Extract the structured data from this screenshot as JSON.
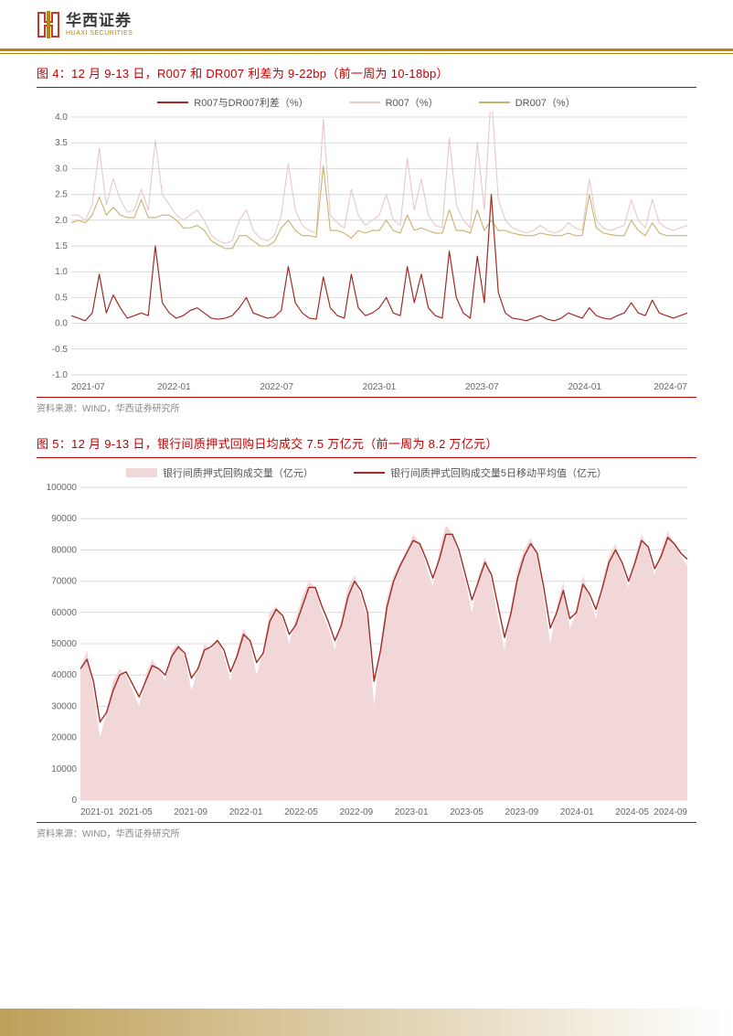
{
  "brand": {
    "zh": "华西证券",
    "en": "HUAXI SECURITIES",
    "logo_colors": {
      "red": "#c0392b",
      "gold": "#b8860b"
    }
  },
  "figure4": {
    "title": "图 4：12 月 9-13 日，R007 和 DR007 利差为 9-22bp（前一周为 10-18bp）",
    "type": "line",
    "legend": [
      {
        "label": "R007与DR007利差（%）",
        "color": "#9e2b25",
        "kind": "line"
      },
      {
        "label": "R007（%）",
        "color": "#e8c8c8",
        "kind": "line"
      },
      {
        "label": "DR007（%）",
        "color": "#c9b26a",
        "kind": "line"
      }
    ],
    "ylim": [
      -1.0,
      4.0
    ],
    "ytick_step": 0.5,
    "xticks": [
      "2021-07",
      "2022-01",
      "2022-07",
      "2023-01",
      "2023-07",
      "2024-01",
      "2024-07"
    ],
    "background_color": "#ffffff",
    "grid_color": "#d9d9d9",
    "axis_fontsize": 10,
    "series": {
      "spread": {
        "color": "#9e2b25",
        "width": 1.2,
        "values": [
          0.15,
          0.1,
          0.05,
          0.2,
          0.95,
          0.2,
          0.55,
          0.3,
          0.1,
          0.15,
          0.2,
          0.15,
          1.5,
          0.4,
          0.2,
          0.1,
          0.15,
          0.25,
          0.3,
          0.2,
          0.1,
          0.08,
          0.1,
          0.15,
          0.3,
          0.5,
          0.2,
          0.15,
          0.1,
          0.12,
          0.25,
          1.1,
          0.4,
          0.2,
          0.1,
          0.08,
          0.9,
          0.3,
          0.15,
          0.1,
          0.95,
          0.3,
          0.15,
          0.2,
          0.3,
          0.5,
          0.2,
          0.15,
          1.1,
          0.4,
          0.95,
          0.3,
          0.15,
          0.1,
          1.4,
          0.5,
          0.2,
          0.1,
          1.3,
          0.4,
          2.5,
          0.6,
          0.2,
          0.1,
          0.08,
          0.05,
          0.1,
          0.15,
          0.08,
          0.05,
          0.1,
          0.2,
          0.15,
          0.1,
          0.3,
          0.15,
          0.1,
          0.08,
          0.15,
          0.2,
          0.4,
          0.2,
          0.15,
          0.45,
          0.2,
          0.15,
          0.1,
          0.15,
          0.2
        ]
      },
      "r007": {
        "color": "#e8c8c8",
        "width": 1.1,
        "values": [
          2.1,
          2.1,
          2.0,
          2.3,
          3.4,
          2.3,
          2.8,
          2.4,
          2.15,
          2.2,
          2.6,
          2.2,
          3.55,
          2.5,
          2.3,
          2.1,
          2.0,
          2.1,
          2.2,
          2.0,
          1.7,
          1.6,
          1.55,
          1.6,
          2.0,
          2.2,
          1.8,
          1.65,
          1.6,
          1.7,
          2.1,
          3.1,
          2.2,
          1.9,
          1.8,
          1.75,
          3.95,
          2.1,
          1.95,
          1.85,
          2.6,
          2.1,
          1.9,
          2.0,
          2.1,
          2.5,
          2.0,
          1.9,
          3.2,
          2.2,
          2.8,
          2.1,
          1.9,
          1.85,
          3.6,
          2.3,
          2.0,
          1.85,
          3.5,
          2.2,
          4.5,
          2.4,
          2.0,
          1.85,
          1.8,
          1.75,
          1.8,
          1.9,
          1.8,
          1.75,
          1.8,
          1.95,
          1.85,
          1.8,
          2.8,
          2.0,
          1.85,
          1.8,
          1.85,
          1.9,
          2.4,
          2.0,
          1.85,
          2.4,
          1.95,
          1.85,
          1.8,
          1.85,
          1.9
        ]
      },
      "dr007": {
        "color": "#c9b26a",
        "width": 1.1,
        "values": [
          1.95,
          2.0,
          1.95,
          2.1,
          2.45,
          2.1,
          2.25,
          2.1,
          2.05,
          2.05,
          2.4,
          2.05,
          2.05,
          2.1,
          2.1,
          2.0,
          1.85,
          1.85,
          1.9,
          1.8,
          1.6,
          1.52,
          1.45,
          1.45,
          1.7,
          1.7,
          1.6,
          1.5,
          1.5,
          1.58,
          1.85,
          2.0,
          1.8,
          1.7,
          1.7,
          1.67,
          3.05,
          1.8,
          1.8,
          1.75,
          1.65,
          1.8,
          1.75,
          1.8,
          1.8,
          2.0,
          1.8,
          1.75,
          2.1,
          1.8,
          1.85,
          1.8,
          1.75,
          1.75,
          2.2,
          1.8,
          1.8,
          1.75,
          2.2,
          1.8,
          2.0,
          1.8,
          1.8,
          1.75,
          1.72,
          1.7,
          1.7,
          1.75,
          1.72,
          1.7,
          1.7,
          1.75,
          1.7,
          1.7,
          2.5,
          1.85,
          1.75,
          1.72,
          1.7,
          1.7,
          2.0,
          1.8,
          1.7,
          1.95,
          1.75,
          1.7,
          1.7,
          1.7,
          1.7
        ]
      }
    },
    "source": "资料来源：WIND，华西证券研究所"
  },
  "figure5": {
    "title": "图 5：12 月 9-13 日，银行间质押式回购日均成交 7.5 万亿元（前一周为 8.2 万亿元）",
    "type": "area+line",
    "legend": [
      {
        "label": "银行间质押式回购成交量（亿元）",
        "color": "#f1d7d7",
        "kind": "area"
      },
      {
        "label": "银行间质押式回购成交量5日移动平均值（亿元）",
        "color": "#9e2b25",
        "kind": "line"
      }
    ],
    "ylim": [
      0,
      100000
    ],
    "ytick_step": 10000,
    "xticks": [
      "2021-01",
      "2021-05",
      "2021-09",
      "2022-01",
      "2022-05",
      "2022-09",
      "2023-01",
      "2023-05",
      "2023-09",
      "2024-01",
      "2024-05",
      "2024-09"
    ],
    "background_color": "#ffffff",
    "grid_color": "#d9d9d9",
    "axis_fontsize": 10,
    "series": {
      "volume": {
        "color": "#f1d7d7",
        "values": [
          42000,
          48000,
          35000,
          20000,
          28000,
          38000,
          42000,
          40000,
          35000,
          30000,
          40000,
          45000,
          42000,
          38000,
          48000,
          50000,
          46000,
          35000,
          42000,
          50000,
          48000,
          52000,
          46000,
          38000,
          48000,
          55000,
          50000,
          40000,
          48000,
          60000,
          62000,
          58000,
          50000,
          58000,
          65000,
          70000,
          68000,
          60000,
          55000,
          48000,
          58000,
          68000,
          72000,
          65000,
          58000,
          30000,
          50000,
          65000,
          72000,
          76000,
          80000,
          85000,
          82000,
          75000,
          68000,
          80000,
          88000,
          85000,
          78000,
          70000,
          60000,
          72000,
          78000,
          70000,
          58000,
          48000,
          62000,
          74000,
          80000,
          84000,
          78000,
          65000,
          50000,
          62000,
          70000,
          55000,
          60000,
          72000,
          65000,
          58000,
          70000,
          78000,
          82000,
          75000,
          68000,
          78000,
          85000,
          80000,
          72000,
          80000,
          86000,
          82000,
          78000,
          75000
        ]
      },
      "ma5": {
        "color": "#9e2b25",
        "width": 1.4,
        "values": [
          42000,
          45000,
          38000,
          25000,
          28000,
          35000,
          40000,
          41000,
          37000,
          33000,
          38000,
          43000,
          42000,
          40000,
          46000,
          49000,
          47000,
          39000,
          42000,
          48000,
          49000,
          51000,
          48000,
          41000,
          46000,
          53000,
          51000,
          44000,
          47000,
          57000,
          61000,
          59000,
          53000,
          56000,
          62000,
          68000,
          68000,
          62000,
          57000,
          51000,
          56000,
          65000,
          70000,
          67000,
          60000,
          38000,
          48000,
          62000,
          70000,
          75000,
          79000,
          83000,
          82000,
          77000,
          71000,
          77000,
          85000,
          85000,
          80000,
          72000,
          64000,
          70000,
          76000,
          72000,
          62000,
          52000,
          60000,
          71000,
          78000,
          82000,
          79000,
          68000,
          55000,
          60000,
          67000,
          58000,
          60000,
          69000,
          66000,
          61000,
          68000,
          76000,
          80000,
          76000,
          70000,
          76000,
          83000,
          81000,
          74000,
          78000,
          84000,
          82000,
          79000,
          77000
        ]
      }
    },
    "source": "资料来源：WIND，华西证券研究所"
  }
}
